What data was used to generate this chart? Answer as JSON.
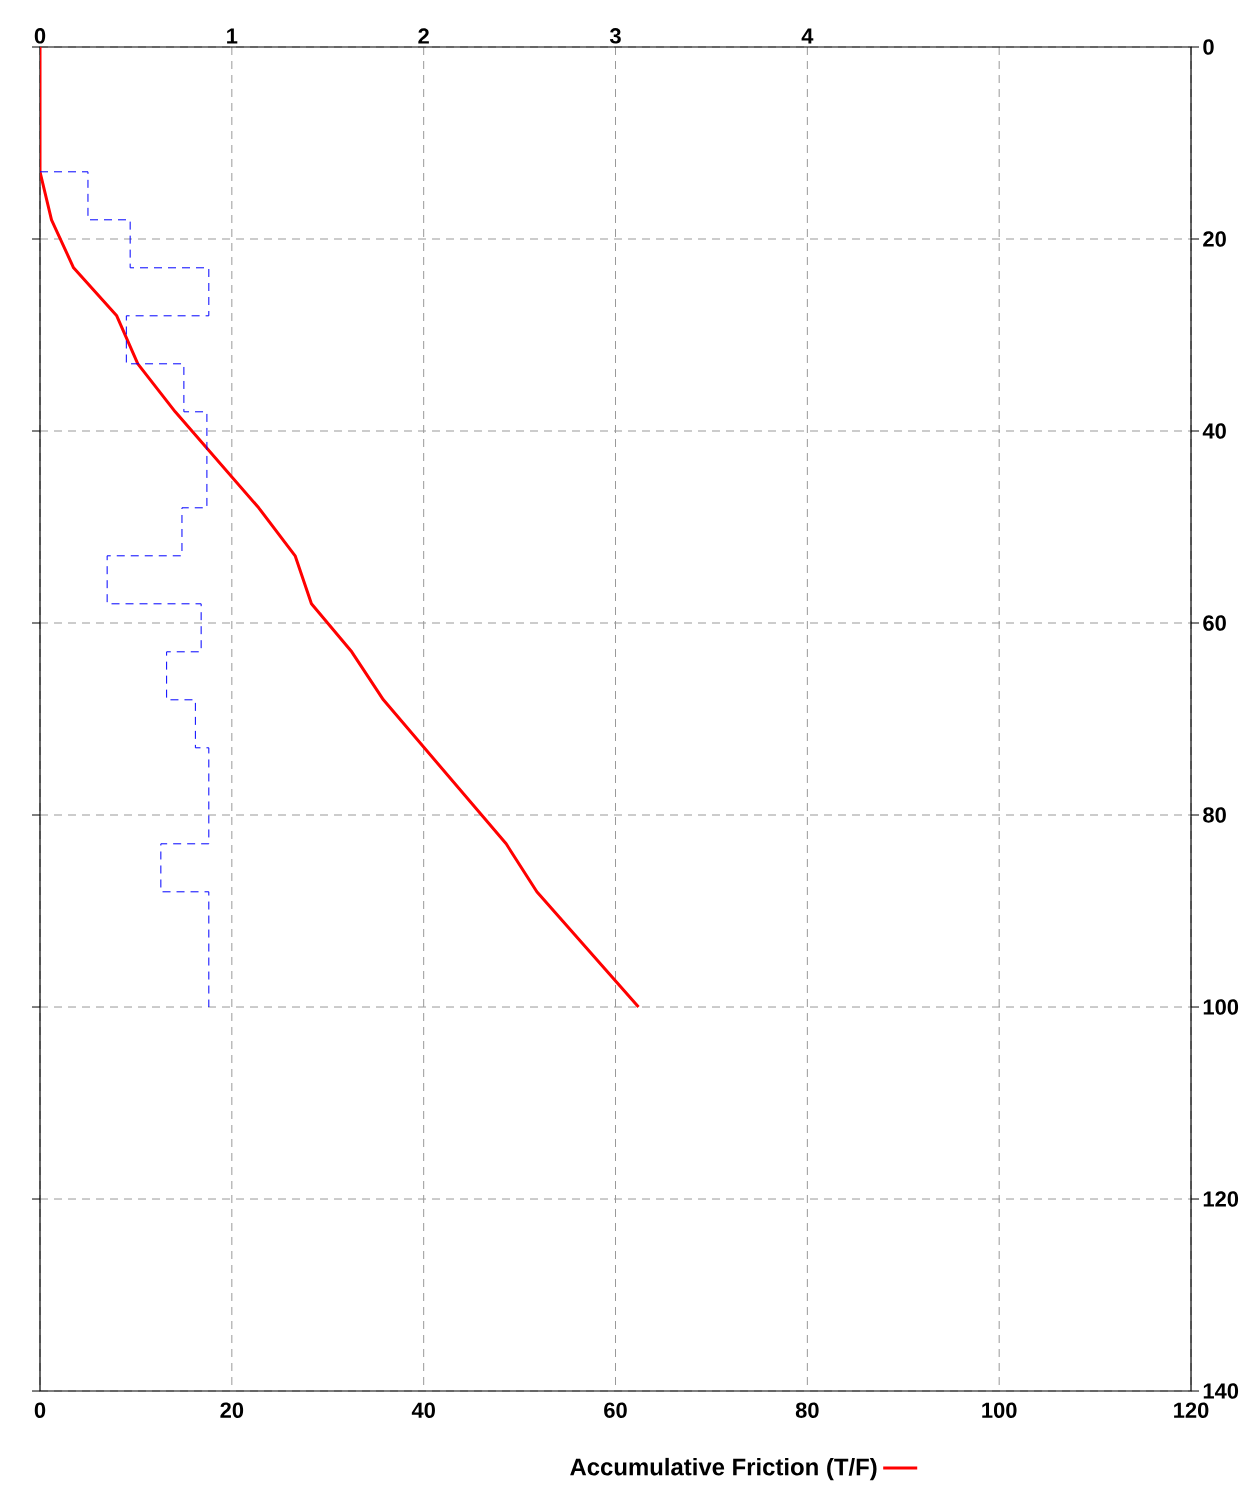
{
  "chart_data": {
    "type": "line",
    "xlim": [
      0,
      120
    ],
    "xticks": [
      0,
      20,
      40,
      60,
      80,
      100,
      120
    ],
    "x2lim": [
      0,
      6
    ],
    "x2ticks": [
      0,
      1,
      2,
      3,
      4
    ],
    "ylim": [
      140,
      0
    ],
    "yticks": [
      0,
      20,
      40,
      60,
      80,
      100,
      120,
      140
    ],
    "grid": true,
    "legend": "bottom",
    "series": [
      {
        "name": "Accumulative Friction (T/F)",
        "color": "#ff0000",
        "x": [
          0,
          0,
          1.2,
          3.5,
          8.0,
          10.2,
          14.1,
          22.8,
          26.6,
          28.3,
          32.5,
          35.8,
          48.6,
          51.8,
          62.4
        ],
        "values": [
          0,
          13,
          18,
          23,
          28,
          33,
          38,
          48,
          53,
          58,
          63,
          68,
          83,
          88,
          100
        ]
      },
      {
        "color": "#0000ff",
        "axis": "x2",
        "line_style": "dashed",
        "x": [
          0,
          0.25,
          0.25,
          0.47,
          0.47,
          0.88,
          0.88,
          0.45,
          0.45,
          0.75,
          0.75,
          0.87,
          0.87,
          0.74,
          0.74,
          0.35,
          0.35,
          0.84,
          0.84,
          0.66,
          0.66,
          0.81,
          0.81,
          0.88,
          0.88,
          0.63,
          0.63,
          0.88,
          0.88
        ],
        "values": [
          13,
          13,
          18,
          18,
          23,
          23,
          28,
          28,
          33,
          33,
          38,
          38,
          48,
          48,
          53,
          53,
          58,
          58,
          63,
          63,
          68,
          68,
          73,
          73,
          83,
          83,
          88,
          88,
          100
        ]
      }
    ]
  }
}
